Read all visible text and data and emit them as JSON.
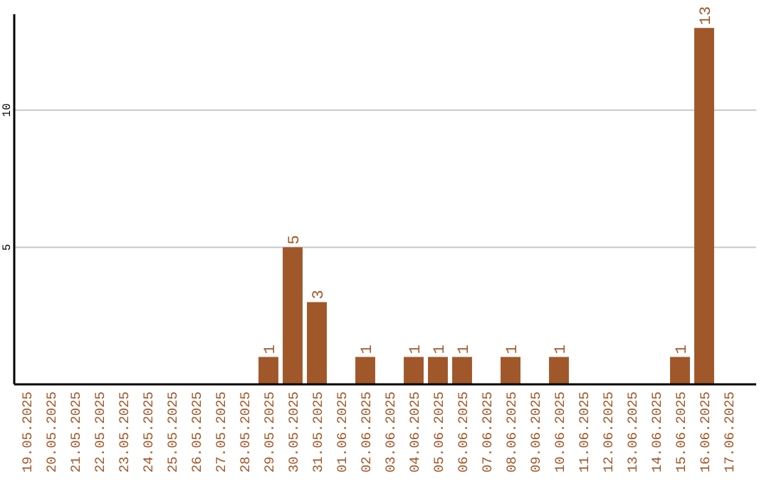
{
  "chart_data": {
    "type": "bar",
    "categories": [
      "19.05.2025",
      "20.05.2025",
      "21.05.2025",
      "22.05.2025",
      "23.05.2025",
      "24.05.2025",
      "25.05.2025",
      "26.05.2025",
      "27.05.2025",
      "28.05.2025",
      "29.05.2025",
      "30.05.2025",
      "31.05.2025",
      "01.06.2025",
      "02.06.2025",
      "03.06.2025",
      "04.06.2025",
      "05.06.2025",
      "06.06.2025",
      "07.06.2025",
      "08.06.2025",
      "09.06.2025",
      "10.06.2025",
      "11.06.2025",
      "12.06.2025",
      "13.06.2025",
      "14.06.2025",
      "15.06.2025",
      "16.06.2025",
      "17.06.2025"
    ],
    "values": [
      0,
      0,
      0,
      0,
      0,
      0,
      0,
      0,
      0,
      0,
      1,
      5,
      3,
      0,
      1,
      0,
      1,
      1,
      1,
      0,
      1,
      0,
      1,
      0,
      0,
      0,
      0,
      1,
      13,
      0
    ],
    "value_labels": [
      null,
      null,
      null,
      null,
      null,
      null,
      null,
      null,
      null,
      null,
      "1",
      "5",
      "3",
      null,
      "1",
      null,
      "1",
      "1",
      "1",
      null,
      "1",
      null,
      "1",
      null,
      null,
      null,
      null,
      "1",
      "13",
      null
    ],
    "color": "#a0572a",
    "ylim": [
      0,
      13.5
    ],
    "yticks": [
      5,
      10
    ],
    "grid": "y"
  }
}
